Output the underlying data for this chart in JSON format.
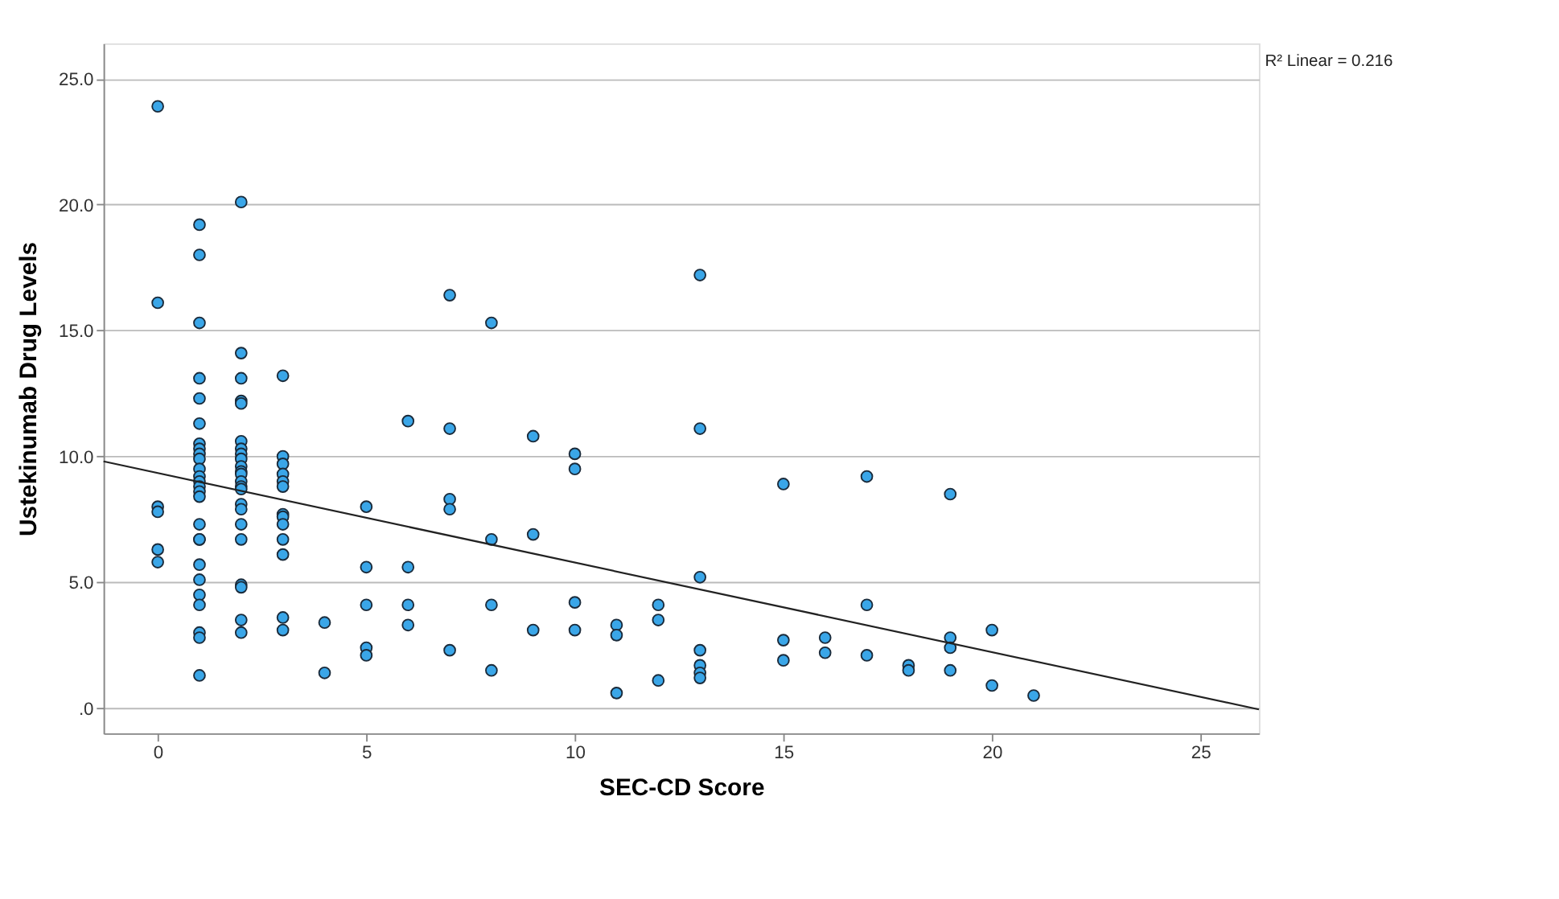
{
  "chart_data": {
    "type": "scatter",
    "xlabel": "SEC-CD Score",
    "ylabel": "Ustekinumab Drug Levels",
    "annotations": [
      "R² Linear = 0.216"
    ],
    "xlim": [
      -1.3,
      26.4
    ],
    "xticks": [
      0,
      5,
      10,
      15,
      20,
      25
    ],
    "ylim": [
      -1.0,
      26.4
    ],
    "yticks": [
      {
        "value": 0,
        "label": ".0"
      },
      {
        "value": 5,
        "label": "5.0"
      },
      {
        "value": 10,
        "label": "10.0"
      },
      {
        "value": 15,
        "label": "15.0"
      },
      {
        "value": 20,
        "label": "20.0"
      },
      {
        "value": 25,
        "label": "25.0"
      }
    ],
    "grid": "y",
    "marker": "circle",
    "series": [
      {
        "color": "#3aa6e8",
        "x": [
          0,
          0,
          0,
          0,
          0,
          0,
          1,
          1,
          1,
          1,
          1,
          1,
          1,
          1,
          1,
          1,
          1,
          1,
          1,
          1,
          1,
          1,
          1,
          1,
          1,
          1,
          1,
          1,
          1,
          1,
          1,
          1,
          2,
          2,
          2,
          2,
          2,
          2,
          2,
          2,
          2,
          2,
          2,
          2,
          2,
          2,
          2,
          2,
          2,
          2,
          2,
          2,
          2,
          2,
          2,
          3,
          3,
          3,
          3,
          3,
          3,
          3,
          3,
          3,
          3,
          3,
          3,
          3,
          4,
          4,
          5,
          5,
          5,
          5,
          5,
          6,
          6,
          6,
          6,
          7,
          7,
          7,
          7,
          7,
          8,
          8,
          8,
          8,
          9,
          9,
          9,
          10,
          10,
          10,
          10,
          11,
          11,
          11,
          12,
          12,
          12,
          13,
          13,
          13,
          13,
          13,
          13,
          13,
          15,
          15,
          15,
          16,
          16,
          17,
          17,
          17,
          18,
          18,
          19,
          19,
          19,
          19,
          20,
          20,
          21
        ],
        "values": [
          23.9,
          16.1,
          8.0,
          7.8,
          6.3,
          5.8,
          19.2,
          18.0,
          15.3,
          13.1,
          12.3,
          11.3,
          10.5,
          10.3,
          10.1,
          9.9,
          9.5,
          9.2,
          9.0,
          8.8,
          8.6,
          8.4,
          7.3,
          6.7,
          6.7,
          5.7,
          5.1,
          4.5,
          4.1,
          3.0,
          2.8,
          1.3,
          20.1,
          14.1,
          13.1,
          12.2,
          12.1,
          10.6,
          10.3,
          10.1,
          9.9,
          9.6,
          9.4,
          9.3,
          9.0,
          8.8,
          8.7,
          8.1,
          7.9,
          7.3,
          6.7,
          4.9,
          4.8,
          3.5,
          3.0,
          13.2,
          10.0,
          9.7,
          9.3,
          9.0,
          8.8,
          7.7,
          7.6,
          7.3,
          6.7,
          6.1,
          3.6,
          3.1,
          3.4,
          1.4,
          8.0,
          5.6,
          4.1,
          2.4,
          2.1,
          11.4,
          5.6,
          4.1,
          3.3,
          16.4,
          11.1,
          8.3,
          7.9,
          2.3,
          15.3,
          6.7,
          4.1,
          1.5,
          10.8,
          6.9,
          3.1,
          10.1,
          9.5,
          4.2,
          3.1,
          3.3,
          2.9,
          0.6,
          4.1,
          3.5,
          1.1,
          17.2,
          11.1,
          5.2,
          2.3,
          1.7,
          1.4,
          1.2,
          8.9,
          2.7,
          1.9,
          2.8,
          2.2,
          9.2,
          4.1,
          2.1,
          1.7,
          1.5,
          8.5,
          2.8,
          2.4,
          1.5,
          3.1,
          0.9,
          0.5
        ]
      },
      {
        "type": "line",
        "marker": "none",
        "color": "#222222",
        "x": [
          -1.3,
          26.4
        ],
        "values": [
          9.8,
          -0.05
        ]
      }
    ]
  }
}
